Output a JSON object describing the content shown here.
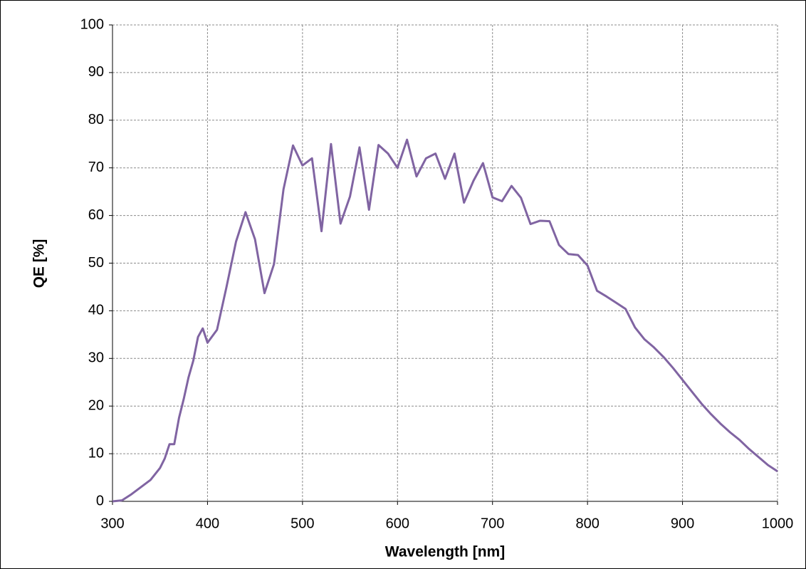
{
  "chart_data": {
    "type": "line",
    "xlabel": "Wavelength [nm]",
    "ylabel": "QE [%]",
    "x": [
      300,
      310,
      320,
      330,
      340,
      350,
      355,
      360,
      365,
      370,
      375,
      380,
      385,
      390,
      395,
      400,
      410,
      420,
      430,
      440,
      450,
      460,
      470,
      480,
      490,
      500,
      510,
      520,
      530,
      540,
      550,
      560,
      570,
      580,
      590,
      600,
      610,
      620,
      630,
      640,
      650,
      660,
      670,
      680,
      690,
      700,
      710,
      720,
      730,
      740,
      750,
      760,
      770,
      780,
      790,
      800,
      810,
      820,
      830,
      840,
      850,
      860,
      870,
      880,
      890,
      900,
      910,
      920,
      930,
      940,
      950,
      960,
      970,
      980,
      990,
      1000
    ],
    "series": [
      {
        "color": "#8064a2",
        "values": [
          0,
          0.2,
          1.5,
          3,
          4.5,
          7,
          9,
          12,
          12,
          17.5,
          21.5,
          26,
          29.5,
          34.5,
          36.3,
          33.3,
          36,
          45,
          54.5,
          60.7,
          55,
          43.7,
          49.8,
          65.5,
          74.7,
          70.5,
          72,
          56.7,
          75,
          58.3,
          64,
          74.3,
          61.2,
          74.8,
          73,
          70,
          75.9,
          68.2,
          72,
          73,
          67.7,
          73,
          62.7,
          67.3,
          71,
          63.8,
          63,
          66.2,
          63.7,
          58.2,
          58.9,
          58.8,
          53.8,
          51.9,
          51.7,
          49.5,
          44.2,
          43,
          41.7,
          40.4,
          36.5,
          34,
          32.3,
          30.3,
          28,
          25.5,
          23,
          20.5,
          18.3,
          16.3,
          14.5,
          12.9,
          11,
          9.3,
          7.6,
          6.3
        ]
      }
    ],
    "xlim": [
      300,
      1000
    ],
    "xticks": [
      300,
      400,
      500,
      600,
      700,
      800,
      900,
      1000
    ],
    "ylim": [
      0,
      100
    ],
    "yticks": [
      0,
      10,
      20,
      30,
      40,
      50,
      60,
      70,
      80,
      90,
      100
    ],
    "grid": true
  }
}
